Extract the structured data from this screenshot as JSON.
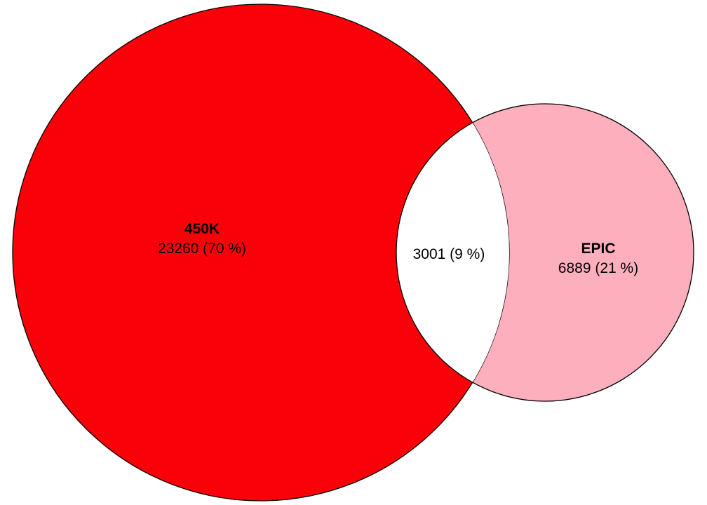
{
  "chart_data": {
    "type": "venn",
    "sets": [
      {
        "name": "450K",
        "count_label": "23260 (70 %)",
        "only_count": 23260,
        "only_percent": 70,
        "color": "#fa0008"
      },
      {
        "name": "EPIC",
        "count_label": "6889 (21 %)",
        "only_count": 6889,
        "only_percent": 21,
        "color": "#feafbd"
      }
    ],
    "intersection": {
      "count_label": "3001 (9 %)",
      "count": 3001,
      "percent": 9,
      "color": "#ffffff"
    },
    "outline_color": "#000000"
  }
}
